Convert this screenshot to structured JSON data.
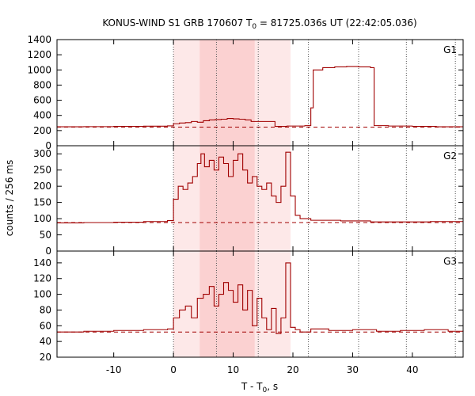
{
  "chart_data": {
    "type": "line",
    "title_main": "KONUS-WIND S1 GRB 170607 T",
    "title_sub": "0",
    "title_rest": " = 81725.036s UT (22:42:05.036)",
    "xlabel_main": "T - T",
    "xlabel_sub": "0",
    "xlabel_rest": ", s",
    "ylabel": "counts / 256 ms",
    "xlim": [
      -19.5,
      48.5
    ],
    "xticks": [
      -10,
      0,
      10,
      20,
      30,
      40
    ],
    "vlines": [
      0,
      7.2,
      14.2,
      22.6,
      31,
      39,
      47.2
    ],
    "shade_light": [
      0,
      19.6
    ],
    "shade_dark": [
      4.4,
      13.6
    ],
    "line_color": "#a00000",
    "shade_light_color": "#fde8e8",
    "shade_dark_color": "#fbd1d1",
    "panels": [
      {
        "name": "G1",
        "ylim": [
          0,
          1400
        ],
        "yticks": [
          0,
          200,
          400,
          600,
          800,
          1000,
          1200,
          1400
        ],
        "background": 245,
        "points": [
          [
            -19.5,
            250
          ],
          [
            -15,
            252
          ],
          [
            -10,
            255
          ],
          [
            -5,
            258
          ],
          [
            -1,
            262
          ],
          [
            0,
            290
          ],
          [
            1,
            300
          ],
          [
            2,
            305
          ],
          [
            3,
            320
          ],
          [
            4,
            310
          ],
          [
            5,
            330
          ],
          [
            6,
            340
          ],
          [
            7,
            345
          ],
          [
            8,
            350
          ],
          [
            9,
            360
          ],
          [
            10,
            355
          ],
          [
            11,
            350
          ],
          [
            12,
            340
          ],
          [
            13,
            320
          ],
          [
            17,
            255
          ],
          [
            19,
            260
          ],
          [
            21,
            260
          ],
          [
            22,
            265
          ],
          [
            23,
            500
          ],
          [
            23.4,
            1000
          ],
          [
            25,
            1030
          ],
          [
            27,
            1040
          ],
          [
            29,
            1045
          ],
          [
            31,
            1040
          ],
          [
            33,
            1030
          ],
          [
            33.6,
            265
          ],
          [
            36,
            260
          ],
          [
            40,
            255
          ],
          [
            44,
            250
          ],
          [
            48.5,
            250
          ]
        ]
      },
      {
        "name": "G2",
        "ylim": [
          0,
          325
        ],
        "yticks": [
          0,
          50,
          100,
          150,
          200,
          250,
          300
        ],
        "background": 88,
        "points": [
          [
            -19.5,
            87
          ],
          [
            -15,
            88
          ],
          [
            -10,
            89
          ],
          [
            -5,
            91
          ],
          [
            -1,
            94
          ],
          [
            0,
            160
          ],
          [
            0.8,
            200
          ],
          [
            1.6,
            190
          ],
          [
            2.4,
            210
          ],
          [
            3.2,
            230
          ],
          [
            4,
            270
          ],
          [
            4.6,
            300
          ],
          [
            5.2,
            260
          ],
          [
            6,
            280
          ],
          [
            6.8,
            250
          ],
          [
            7.6,
            290
          ],
          [
            8.4,
            270
          ],
          [
            9.2,
            230
          ],
          [
            10,
            280
          ],
          [
            10.8,
            300
          ],
          [
            11.6,
            250
          ],
          [
            12.4,
            210
          ],
          [
            13.2,
            230
          ],
          [
            14,
            200
          ],
          [
            14.8,
            190
          ],
          [
            15.6,
            210
          ],
          [
            16.4,
            170
          ],
          [
            17.2,
            150
          ],
          [
            18,
            200
          ],
          [
            18.8,
            305
          ],
          [
            19.6,
            170
          ],
          [
            20.4,
            110
          ],
          [
            21.2,
            100
          ],
          [
            23,
            95
          ],
          [
            28,
            93
          ],
          [
            33,
            90
          ],
          [
            38,
            90
          ],
          [
            43,
            91
          ],
          [
            48.5,
            91
          ]
        ]
      },
      {
        "name": "G3",
        "ylim": [
          20,
          155
        ],
        "yticks": [
          20,
          40,
          60,
          80,
          100,
          120,
          140
        ],
        "background": 52,
        "points": [
          [
            -19.5,
            52
          ],
          [
            -15,
            53
          ],
          [
            -10,
            54
          ],
          [
            -5,
            55
          ],
          [
            -1,
            56
          ],
          [
            0,
            70
          ],
          [
            1,
            80
          ],
          [
            2,
            85
          ],
          [
            3,
            70
          ],
          [
            4,
            95
          ],
          [
            5,
            100
          ],
          [
            6,
            110
          ],
          [
            6.8,
            85
          ],
          [
            7.6,
            100
          ],
          [
            8.4,
            115
          ],
          [
            9.2,
            105
          ],
          [
            10,
            90
          ],
          [
            10.8,
            112
          ],
          [
            11.6,
            80
          ],
          [
            12.4,
            105
          ],
          [
            13.2,
            60
          ],
          [
            14,
            95
          ],
          [
            14.8,
            70
          ],
          [
            15.6,
            55
          ],
          [
            16.4,
            82
          ],
          [
            17.2,
            50
          ],
          [
            18,
            70
          ],
          [
            18.8,
            140
          ],
          [
            19.6,
            58
          ],
          [
            20.4,
            55
          ],
          [
            21.2,
            52
          ],
          [
            23,
            56
          ],
          [
            26,
            54
          ],
          [
            30,
            55
          ],
          [
            34,
            53
          ],
          [
            38,
            54
          ],
          [
            42,
            55
          ],
          [
            46,
            53
          ],
          [
            48.5,
            54
          ]
        ]
      }
    ]
  }
}
